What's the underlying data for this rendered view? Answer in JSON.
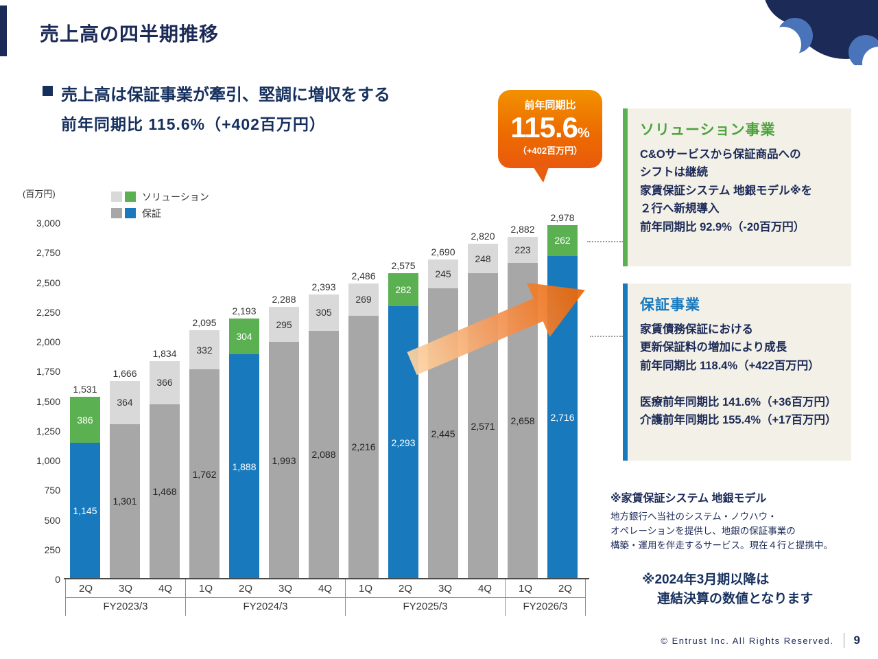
{
  "slide": {
    "title": "売上高の四半期推移",
    "footer_copyright": "© Entrust Inc. All Rights Reserved.",
    "page_number": "9"
  },
  "headline": {
    "line1": "売上高は保証事業が牽引、堅調に増収をする",
    "line2": "前年同期比 115.6%（+402百万円）"
  },
  "badge": {
    "label": "前年同期比",
    "value": "115.6",
    "unit": "%",
    "sub": "（+402百万円）"
  },
  "chart_data": {
    "type": "bar",
    "stacked": true,
    "title": "売上高の四半期推移",
    "unit_label": "(百万円)",
    "ylim": [
      0,
      3000
    ],
    "yticks": [
      0,
      250,
      500,
      750,
      1000,
      1250,
      1500,
      1750,
      2000,
      2250,
      2500,
      2750,
      3000
    ],
    "grid": false,
    "legend_position": "top-left",
    "legend": [
      {
        "label": "ソリューション",
        "swatches": [
          "#d9d9d9",
          "#5bb052"
        ]
      },
      {
        "label": "保証",
        "swatches": [
          "#a7a7a7",
          "#1879bd"
        ]
      }
    ],
    "colors": {
      "solution": "#d9d9d9",
      "solution_highlight": "#5bb052",
      "guarantee": "#a7a7a7",
      "guarantee_highlight": "#1879bd"
    },
    "groups": [
      {
        "fiscal_year": "FY2023/3",
        "quarters": [
          "2Q",
          "3Q",
          "4Q"
        ]
      },
      {
        "fiscal_year": "FY2024/3",
        "quarters": [
          "1Q",
          "2Q",
          "3Q",
          "4Q"
        ]
      },
      {
        "fiscal_year": "FY2025/3",
        "quarters": [
          "1Q",
          "2Q",
          "3Q",
          "4Q"
        ]
      },
      {
        "fiscal_year": "FY2026/3",
        "quarters": [
          "1Q",
          "2Q"
        ]
      }
    ],
    "bars": [
      {
        "fy": "FY2023/3",
        "q": "2Q",
        "total": 1531,
        "solution": 386,
        "guarantee": 1145,
        "highlight": true
      },
      {
        "fy": "FY2023/3",
        "q": "3Q",
        "total": 1666,
        "solution": 364,
        "guarantee": 1301,
        "highlight": false
      },
      {
        "fy": "FY2023/3",
        "q": "4Q",
        "total": 1834,
        "solution": 366,
        "guarantee": 1468,
        "highlight": false
      },
      {
        "fy": "FY2024/3",
        "q": "1Q",
        "total": 2095,
        "solution": 332,
        "guarantee": 1762,
        "highlight": false
      },
      {
        "fy": "FY2024/3",
        "q": "2Q",
        "total": 2193,
        "solution": 304,
        "guarantee": 1888,
        "highlight": true
      },
      {
        "fy": "FY2024/3",
        "q": "3Q",
        "total": 2288,
        "solution": 295,
        "guarantee": 1993,
        "highlight": false
      },
      {
        "fy": "FY2024/3",
        "q": "4Q",
        "total": 2393,
        "solution": 305,
        "guarantee": 2088,
        "highlight": false
      },
      {
        "fy": "FY2025/3",
        "q": "1Q",
        "total": 2486,
        "solution": 269,
        "guarantee": 2216,
        "highlight": false
      },
      {
        "fy": "FY2025/3",
        "q": "2Q",
        "total": 2575,
        "solution": 282,
        "guarantee": 2293,
        "highlight": true
      },
      {
        "fy": "FY2025/3",
        "q": "3Q",
        "total": 2690,
        "solution": 245,
        "guarantee": 2445,
        "highlight": false
      },
      {
        "fy": "FY2025/3",
        "q": "4Q",
        "total": 2820,
        "solution": 248,
        "guarantee": 2571,
        "highlight": false
      },
      {
        "fy": "FY2026/3",
        "q": "1Q",
        "total": 2882,
        "solution": 223,
        "guarantee": 2658,
        "highlight": false
      },
      {
        "fy": "FY2026/3",
        "q": "2Q",
        "total": 2978,
        "solution": 262,
        "guarantee": 2716,
        "highlight": true
      }
    ]
  },
  "panels": {
    "solution": {
      "title": "ソリューション事業",
      "accent_color": "#5bb052",
      "lines": [
        "C&Oサービスから保証商品への",
        "シフトは継続",
        "家賃保証システム 地銀モデル※を",
        "２行へ新規導入",
        "前年同期比 92.9%（-20百万円）"
      ]
    },
    "guarantee": {
      "title": "保証事業",
      "accent_color": "#1879bd",
      "lines": [
        "家賃債務保証における",
        "更新保証料の増加により成長",
        "前年同期比 118.4%（+422百万円）",
        "",
        "医療前年同期比 141.6%（+36百万円）",
        "介護前年同期比 155.4%（+17百万円）"
      ]
    }
  },
  "footnote": {
    "title": "※家賃保証システム 地銀モデル",
    "lines": [
      "地方銀行へ当社のシステム・ノウハウ・",
      "オペレーションを提供し、地銀の保証事業の",
      "構築・運用を伴走するサービス。現在４行と提携中。"
    ]
  },
  "bottom_note": {
    "line1": "※2024年3月期以降は",
    "line2": "連結決算の数値となります"
  }
}
